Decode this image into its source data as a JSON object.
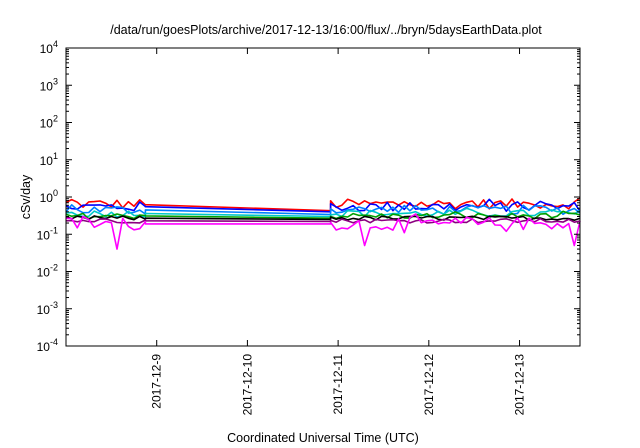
{
  "chart_data": {
    "type": "line",
    "title": "/data/run/goesPlots/archive/2017-12-13/16:00/flux/../bryn/5daysEarthData.plot",
    "xlabel": "Coordinated Universal Time (UTC)",
    "ylabel": "cSv/day",
    "y_scale": "log",
    "ylim": [
      0.0001,
      10000
    ],
    "y_ticks": [
      {
        "base": "10",
        "exp": "-4",
        "value": 0.0001
      },
      {
        "base": "10",
        "exp": "-3",
        "value": 0.001
      },
      {
        "base": "10",
        "exp": "-2",
        "value": 0.01
      },
      {
        "base": "10",
        "exp": "-1",
        "value": 0.1
      },
      {
        "base": "10",
        "exp": "0",
        "value": 1
      },
      {
        "base": "10",
        "exp": "1",
        "value": 10
      },
      {
        "base": "10",
        "exp": "2",
        "value": 100
      },
      {
        "base": "10",
        "exp": "3",
        "value": 1000
      },
      {
        "base": "10",
        "exp": "4",
        "value": 10000
      }
    ],
    "xlim": [
      "2017-12-08 00:00",
      "2017-12-13 16:00"
    ],
    "x_ticks": [
      "2017-12-9",
      "2017-12-10",
      "2017-12-11",
      "2017-12-12",
      "2017-12-13"
    ],
    "grid": false,
    "data_gap": [
      "2017-12-08 21:00",
      "2017-12-10 22:00"
    ],
    "series": [
      {
        "color": "#ff0000",
        "typical": 0.65,
        "noise": 0.14,
        "x": [
          "2017-12-08 00:00",
          "2017-12-08 21:00",
          "2017-12-10 22:00",
          "2017-12-13 16:00"
        ],
        "y": [
          0.62,
          0.62,
          0.43,
          0.63
        ]
      },
      {
        "color": "#0000ff",
        "typical": 0.55,
        "noise": 0.14,
        "x": [
          "2017-12-08 00:00",
          "2017-12-08 21:00",
          "2017-12-10 22:00",
          "2017-12-13 16:00"
        ],
        "y": [
          0.55,
          0.55,
          0.4,
          0.55
        ]
      },
      {
        "color": "#0080ff",
        "typical": 0.45,
        "noise": 0.13,
        "x": [
          "2017-12-08 00:00",
          "2017-12-08 21:00",
          "2017-12-10 22:00",
          "2017-12-13 16:00"
        ],
        "y": [
          0.45,
          0.45,
          0.34,
          0.45
        ]
      },
      {
        "color": "#00c8c8",
        "typical": 0.36,
        "noise": 0.1,
        "x": [
          "2017-12-08 00:00",
          "2017-12-08 21:00",
          "2017-12-10 22:00",
          "2017-12-13 16:00"
        ],
        "y": [
          0.36,
          0.36,
          0.3,
          0.36
        ]
      },
      {
        "color": "#00a000",
        "typical": 0.31,
        "noise": 0.08,
        "x": [
          "2017-12-08 00:00",
          "2017-12-08 21:00",
          "2017-12-10 22:00",
          "2017-12-13 16:00"
        ],
        "y": [
          0.31,
          0.31,
          0.27,
          0.31
        ]
      },
      {
        "color": "#000000",
        "typical": 0.27,
        "noise": 0.06,
        "x": [
          "2017-12-08 00:00",
          "2017-12-08 21:00",
          "2017-12-10 22:00",
          "2017-12-13 16:00"
        ],
        "y": [
          0.27,
          0.27,
          0.25,
          0.27
        ]
      },
      {
        "color": "#8b0080",
        "typical": 0.23,
        "noise": 0.06,
        "x": [
          "2017-12-08 00:00",
          "2017-12-08 21:00",
          "2017-12-10 22:00",
          "2017-12-13 16:00"
        ],
        "y": [
          0.23,
          0.23,
          0.22,
          0.23
        ]
      },
      {
        "color": "#ff00ff",
        "typical": 0.19,
        "noise": 0.18,
        "x": [
          "2017-12-08 00:00",
          "2017-12-08 21:00",
          "2017-12-10 22:00",
          "2017-12-13 16:00"
        ],
        "y": [
          0.19,
          0.19,
          0.19,
          0.19
        ],
        "dips": [
          [
            "2017-12-08 13:00",
            0.04
          ],
          [
            "2017-12-11 07:00",
            0.05
          ],
          [
            "2017-12-13 14:00",
            0.05
          ],
          [
            "2017-12-12 20:00",
            0.12
          ],
          [
            "2017-12-11 18:00",
            0.11
          ]
        ]
      }
    ]
  }
}
